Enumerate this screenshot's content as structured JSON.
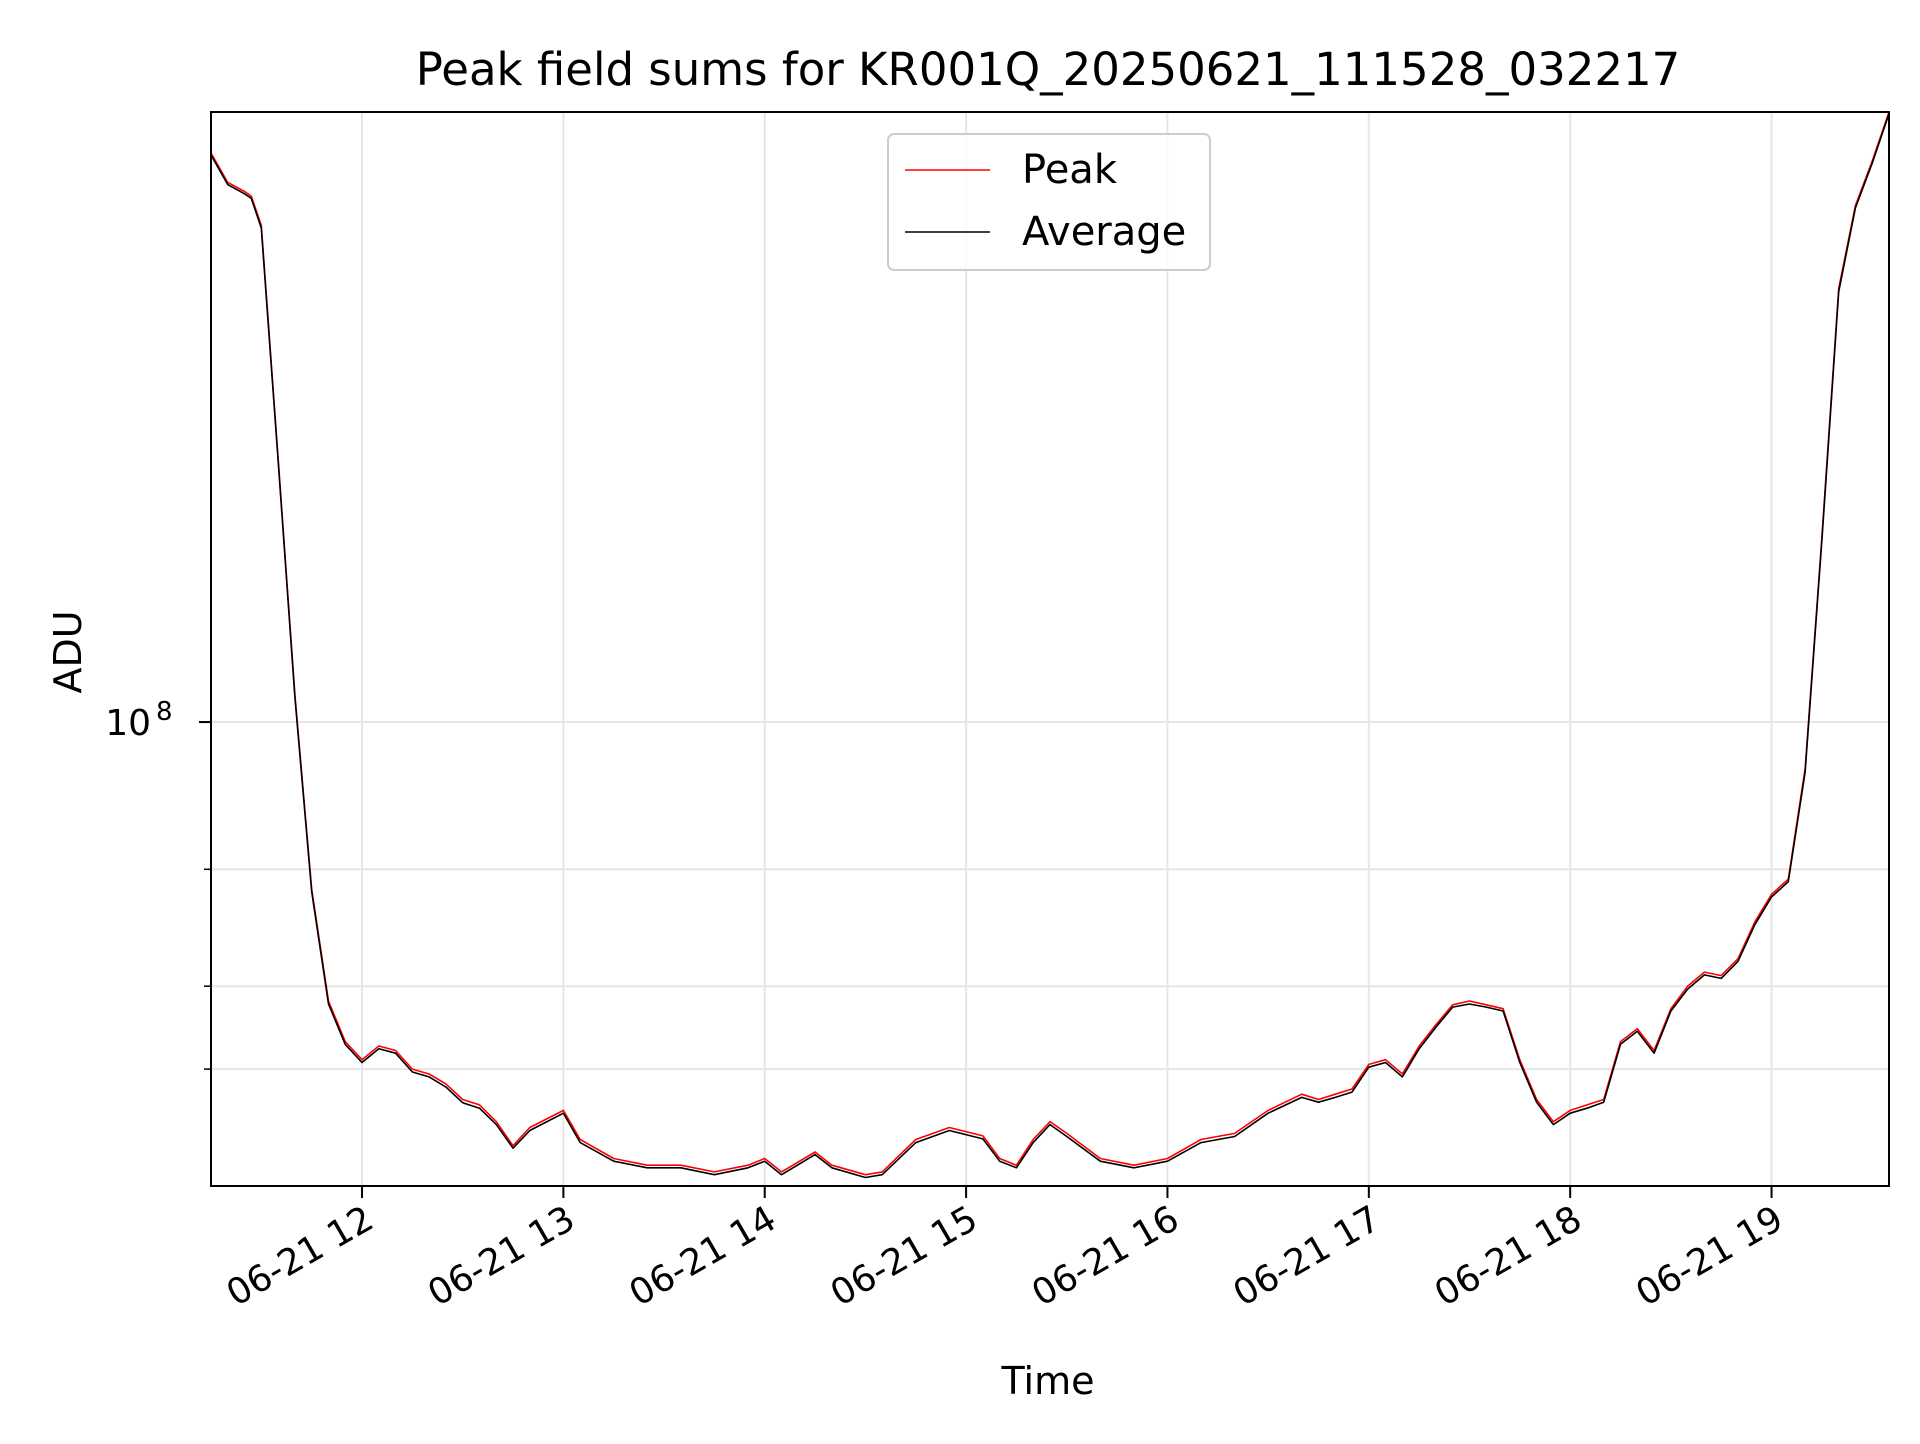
{
  "chart_data": {
    "type": "line",
    "title": "Peak field sums for KR001Q_20250621_111528_032217",
    "xlabel": "Time",
    "ylabel": "ADU",
    "x_ticks": [
      "06-21 12",
      "06-21 13",
      "06-21 14",
      "06-21 15",
      "06-21 16",
      "06-21 17",
      "06-21 18",
      "06-21 19"
    ],
    "y_tick_labels": [
      {
        "value": 100000000,
        "label": "10",
        "exponent": "8"
      }
    ],
    "y_minor_ticks": [
      30000000,
      40000000,
      60000000
    ],
    "xlim": [
      "2025-06-21 11:15",
      "2025-06-21 19:35"
    ],
    "ylim": [
      20000000,
      830000000
    ],
    "y_scale": "log",
    "grid": true,
    "legend_position": "top-center",
    "x": [
      "2025-06-21 11:15",
      "2025-06-21 11:20",
      "2025-06-21 11:25",
      "2025-06-21 11:27",
      "2025-06-21 11:30",
      "2025-06-21 11:35",
      "2025-06-21 11:40",
      "2025-06-21 11:45",
      "2025-06-21 11:50",
      "2025-06-21 11:55",
      "2025-06-21 12:00",
      "2025-06-21 12:05",
      "2025-06-21 12:10",
      "2025-06-21 12:15",
      "2025-06-21 12:20",
      "2025-06-21 12:25",
      "2025-06-21 12:30",
      "2025-06-21 12:35",
      "2025-06-21 12:40",
      "2025-06-21 12:45",
      "2025-06-21 12:50",
      "2025-06-21 13:00",
      "2025-06-21 13:05",
      "2025-06-21 13:15",
      "2025-06-21 13:25",
      "2025-06-21 13:35",
      "2025-06-21 13:45",
      "2025-06-21 13:55",
      "2025-06-21 14:00",
      "2025-06-21 14:05",
      "2025-06-21 14:15",
      "2025-06-21 14:20",
      "2025-06-21 14:30",
      "2025-06-21 14:35",
      "2025-06-21 14:45",
      "2025-06-21 14:55",
      "2025-06-21 15:05",
      "2025-06-21 15:10",
      "2025-06-21 15:15",
      "2025-06-21 15:20",
      "2025-06-21 15:25",
      "2025-06-21 15:30",
      "2025-06-21 15:40",
      "2025-06-21 15:50",
      "2025-06-21 16:00",
      "2025-06-21 16:10",
      "2025-06-21 16:20",
      "2025-06-21 16:30",
      "2025-06-21 16:40",
      "2025-06-21 16:45",
      "2025-06-21 16:50",
      "2025-06-21 16:55",
      "2025-06-21 17:00",
      "2025-06-21 17:05",
      "2025-06-21 17:10",
      "2025-06-21 17:15",
      "2025-06-21 17:20",
      "2025-06-21 17:25",
      "2025-06-21 17:30",
      "2025-06-21 17:35",
      "2025-06-21 17:40",
      "2025-06-21 17:45",
      "2025-06-21 17:50",
      "2025-06-21 17:55",
      "2025-06-21 18:00",
      "2025-06-21 18:05",
      "2025-06-21 18:10",
      "2025-06-21 18:15",
      "2025-06-21 18:20",
      "2025-06-21 18:25",
      "2025-06-21 18:30",
      "2025-06-21 18:35",
      "2025-06-21 18:40",
      "2025-06-21 18:45",
      "2025-06-21 18:50",
      "2025-06-21 18:55",
      "2025-06-21 19:00",
      "2025-06-21 19:05",
      "2025-06-21 19:10",
      "2025-06-21 19:15",
      "2025-06-21 19:20",
      "2025-06-21 19:25",
      "2025-06-21 19:30",
      "2025-06-21 19:35"
    ],
    "series": [
      {
        "name": "Peak",
        "color": "#ff0000",
        "values": [
          720000000,
          650000000,
          630000000,
          620000000,
          560000000,
          250000000,
          110000000,
          56000000,
          38000000,
          33000000,
          31000000,
          32500000,
          32000000,
          30000000,
          29500000,
          28500000,
          27000000,
          26500000,
          25000000,
          23000000,
          24500000,
          26000000,
          23500000,
          22000000,
          21500000,
          21500000,
          21000000,
          21500000,
          22000000,
          21000000,
          22500000,
          21500000,
          20800000,
          21000000,
          23500000,
          24500000,
          23800000,
          22000000,
          21500000,
          23500000,
          25000000,
          24000000,
          22000000,
          21500000,
          22000000,
          23500000,
          24000000,
          26000000,
          27500000,
          27000000,
          27500000,
          28000000,
          30500000,
          31000000,
          29500000,
          32500000,
          35000000,
          37500000,
          38000000,
          37500000,
          37000000,
          31000000,
          27000000,
          25000000,
          26000000,
          26500000,
          27000000,
          33000000,
          34500000,
          32000000,
          37000000,
          40000000,
          42000000,
          41500000,
          44000000,
          50000000,
          55000000,
          58000000,
          85000000,
          190000000,
          450000000,
          600000000,
          700000000,
          830000000
        ]
      },
      {
        "name": "Average",
        "color": "#000000",
        "values": [
          715000000,
          645000000,
          625000000,
          615000000,
          555000000,
          248000000,
          109000000,
          55500000,
          37600000,
          32700000,
          30700000,
          32200000,
          31700000,
          29700000,
          29200000,
          28200000,
          26700000,
          26200000,
          24750000,
          22800000,
          24250000,
          25750000,
          23250000,
          21800000,
          21300000,
          21300000,
          20800000,
          21300000,
          21800000,
          20800000,
          22300000,
          21300000,
          20600000,
          20800000,
          23250000,
          24250000,
          23550000,
          21800000,
          21300000,
          23250000,
          24750000,
          23750000,
          21800000,
          21300000,
          21800000,
          23250000,
          23750000,
          25750000,
          27200000,
          26750000,
          27200000,
          27700000,
          30200000,
          30700000,
          29200000,
          32200000,
          34700000,
          37200000,
          37600000,
          37200000,
          36700000,
          30700000,
          26750000,
          24750000,
          25750000,
          26200000,
          26750000,
          32700000,
          34200000,
          31700000,
          36700000,
          39600000,
          41600000,
          41100000,
          43600000,
          49500000,
          54500000,
          57500000,
          84000000,
          188000000,
          445000000,
          595000000,
          695000000,
          825000000
        ]
      }
    ]
  }
}
